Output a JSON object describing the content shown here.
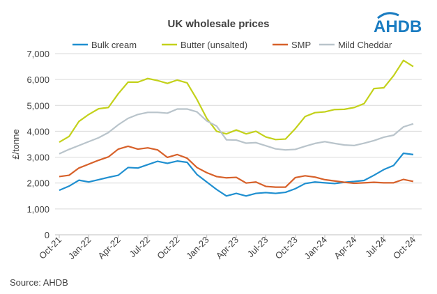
{
  "chart_data": {
    "type": "line",
    "title": "UK wholesale prices",
    "ylabel": "£/tonne",
    "xlabel": "",
    "ylim": [
      0,
      7000
    ],
    "yticks": [
      "0",
      "1,000",
      "2,000",
      "3,000",
      "4,000",
      "5,000",
      "6,000",
      "7,000"
    ],
    "x": [
      "Oct-21",
      "Nov-21",
      "Dec-21",
      "Jan-22",
      "Feb-22",
      "Mar-22",
      "Apr-22",
      "May-22",
      "Jun-22",
      "Jul-22",
      "Aug-22",
      "Sep-22",
      "Oct-22",
      "Nov-22",
      "Dec-22",
      "Jan-23",
      "Feb-23",
      "Mar-23",
      "Apr-23",
      "May-23",
      "Jun-23",
      "Jul-23",
      "Aug-23",
      "Sep-23",
      "Oct-23",
      "Nov-23",
      "Dec-23",
      "Jan-24",
      "Feb-24",
      "Mar-24",
      "Apr-24",
      "May-24",
      "Jun-24",
      "Jul-24",
      "Aug-24",
      "Sep-24",
      "Oct-24"
    ],
    "xtick_labels": [
      "Oct-21",
      "Jan-22",
      "Apr-22",
      "Jul-22",
      "Oct-22",
      "Jan-23",
      "Apr-23",
      "Jul-23",
      "Oct-23",
      "Jan-24",
      "Apr-24",
      "Jul-24",
      "Oct-24"
    ],
    "grid": true,
    "legend": "top",
    "series": [
      {
        "name": "Bulk cream",
        "color": "#1f8fd0",
        "values": [
          1720,
          1880,
          2110,
          2040,
          2130,
          2220,
          2300,
          2600,
          2580,
          2710,
          2840,
          2760,
          2850,
          2800,
          2330,
          2040,
          1750,
          1500,
          1600,
          1500,
          1600,
          1630,
          1600,
          1640,
          1780,
          1980,
          2040,
          2010,
          1980,
          2030,
          2060,
          2100,
          2300,
          2520,
          2680,
          3150,
          3100
        ]
      },
      {
        "name": "Butter (unsalted)",
        "color": "#c3d11b",
        "values": [
          3580,
          3800,
          4380,
          4650,
          4870,
          4920,
          5450,
          5900,
          5900,
          6040,
          5960,
          5850,
          5980,
          5870,
          5230,
          4500,
          4000,
          3900,
          4050,
          3900,
          4000,
          3780,
          3680,
          3700,
          4100,
          4570,
          4720,
          4750,
          4840,
          4850,
          4920,
          5070,
          5650,
          5680,
          6150,
          6740,
          6500
        ]
      },
      {
        "name": "SMP",
        "color": "#d7612a",
        "values": [
          2250,
          2300,
          2580,
          2730,
          2880,
          3010,
          3310,
          3420,
          3310,
          3360,
          3280,
          2990,
          3100,
          2960,
          2600,
          2400,
          2250,
          2200,
          2220,
          2000,
          2040,
          1870,
          1840,
          1840,
          2210,
          2280,
          2230,
          2130,
          2080,
          2030,
          1990,
          2010,
          2030,
          2010,
          2010,
          2140,
          2060
        ]
      },
      {
        "name": "Mild Cheddar",
        "color": "#b9c4cb",
        "values": [
          3130,
          3300,
          3450,
          3600,
          3750,
          3950,
          4250,
          4500,
          4650,
          4730,
          4730,
          4700,
          4860,
          4860,
          4750,
          4400,
          4200,
          3670,
          3660,
          3540,
          3560,
          3440,
          3320,
          3280,
          3300,
          3420,
          3530,
          3600,
          3530,
          3470,
          3450,
          3540,
          3640,
          3770,
          3850,
          4170,
          4290
        ]
      }
    ]
  },
  "logo_text": "AHDB",
  "source": "Source: AHDB"
}
